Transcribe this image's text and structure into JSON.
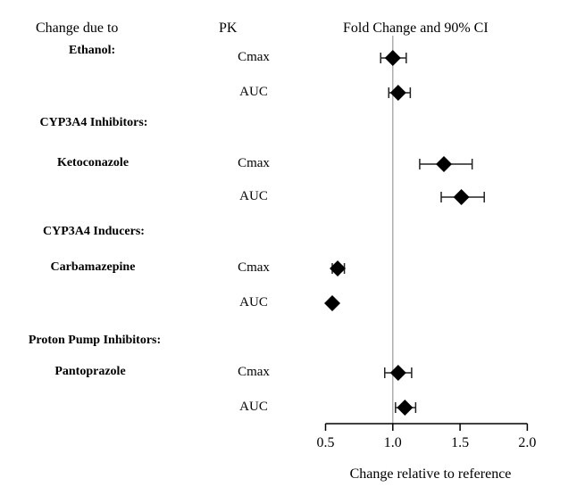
{
  "headers": {
    "change_due_to": "Change due to",
    "pk": "PK",
    "fold_change": "Fold Change and 90% CI"
  },
  "chart_data": {
    "type": "forest",
    "xlabel": "Change relative to reference",
    "xlim": [
      0.5,
      2.0
    ],
    "xticks": [
      "0.5",
      "1.0",
      "1.5",
      "2.0"
    ],
    "reference_line": 1.0,
    "groups": [
      {
        "label": "Ethanol:",
        "rows": [
          {
            "drug": "",
            "pk": "Cmax",
            "value": 1.0,
            "ci": [
              0.91,
              1.1
            ]
          },
          {
            "drug": "",
            "pk": "AUC",
            "value": 1.04,
            "ci": [
              0.97,
              1.13
            ]
          }
        ]
      },
      {
        "label": "CYP3A4 Inhibitors:",
        "rows": [
          {
            "drug": "Ketoconazole",
            "pk": "Cmax",
            "value": 1.38,
            "ci": [
              1.2,
              1.59
            ]
          },
          {
            "drug": "",
            "pk": "AUC",
            "value": 1.51,
            "ci": [
              1.36,
              1.68
            ]
          }
        ]
      },
      {
        "label": "CYP3A4 Inducers:",
        "rows": [
          {
            "drug": "Carbamazepine",
            "pk": "Cmax",
            "value": 0.59,
            "ci": [
              0.55,
              0.64
            ]
          },
          {
            "drug": "",
            "pk": "AUC",
            "value": 0.55,
            "ci": [
              0.54,
              0.56
            ]
          }
        ]
      },
      {
        "label": "Proton Pump Inhibitors:",
        "rows": [
          {
            "drug": "Pantoprazole",
            "pk": "Cmax",
            "value": 1.04,
            "ci": [
              0.94,
              1.14
            ]
          },
          {
            "drug": "",
            "pk": "AUC",
            "value": 1.09,
            "ci": [
              1.02,
              1.17
            ]
          }
        ]
      }
    ]
  }
}
